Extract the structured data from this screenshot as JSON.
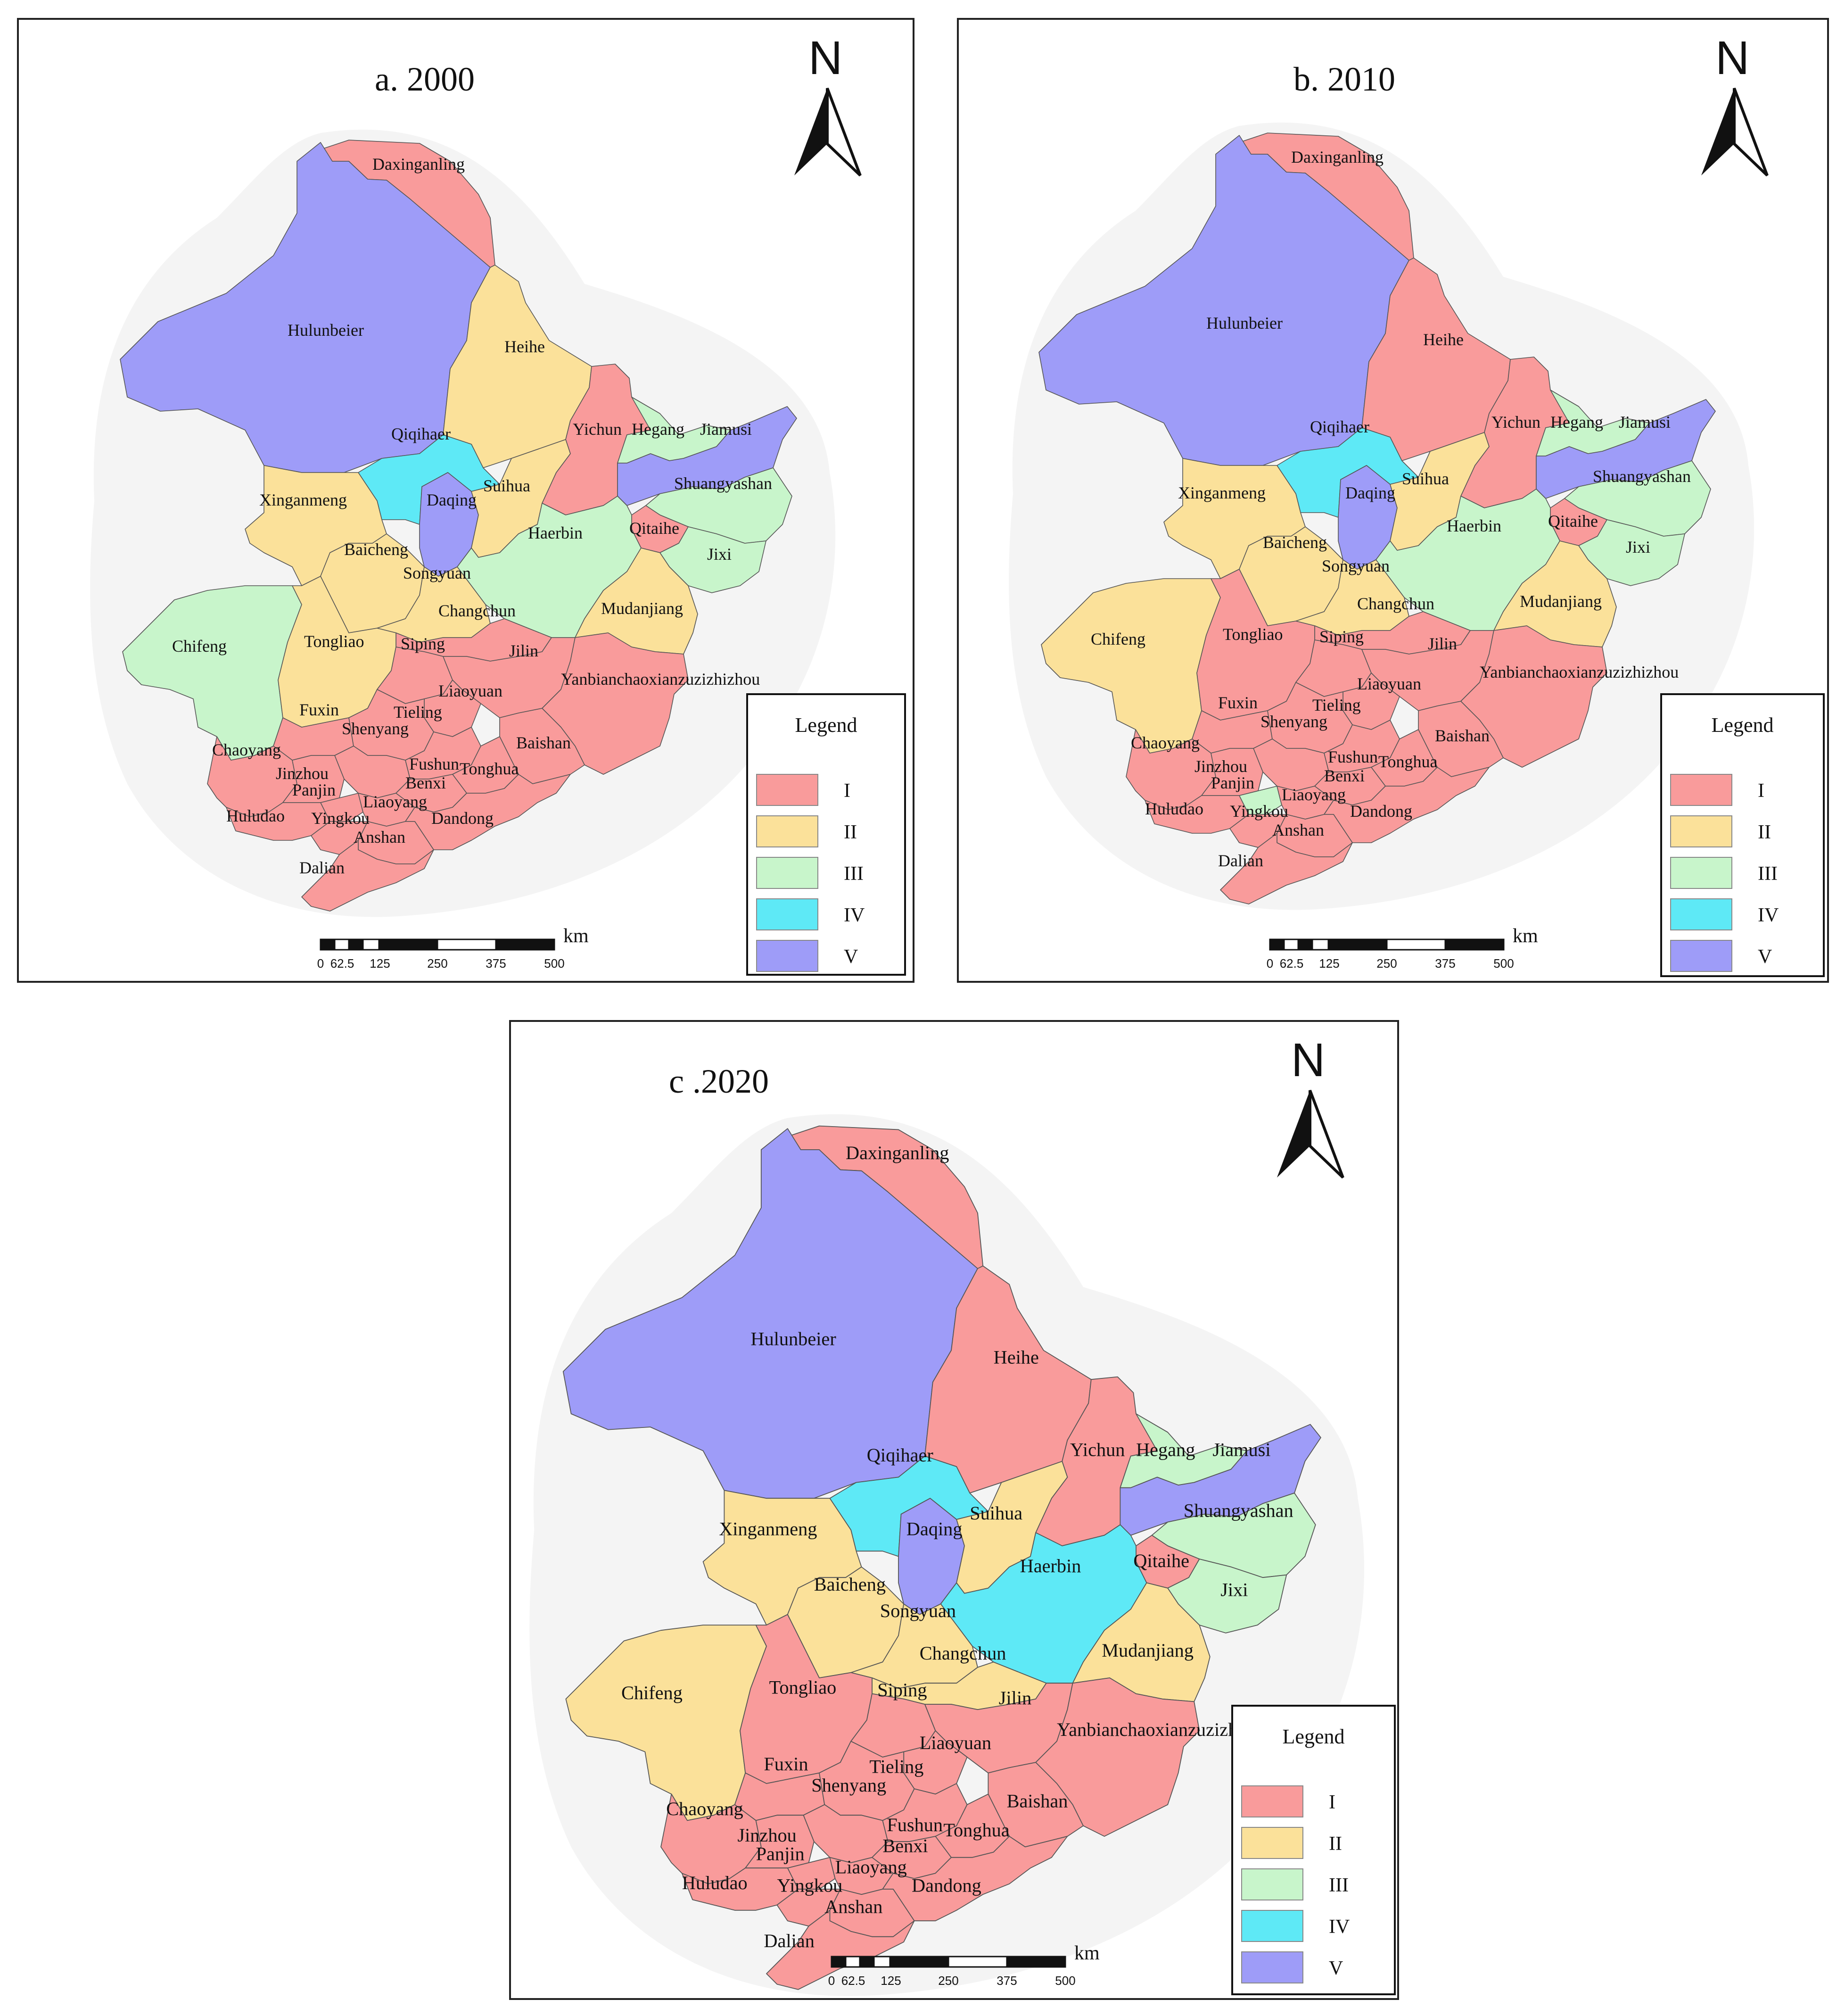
{
  "colors": {
    "I": "#f99b9b",
    "II": "#fbe19a",
    "III": "#c8f5cb",
    "IV": "#5ee9f6",
    "V": "#9e9cf8",
    "halo": "#f4f4f4"
  },
  "legend": {
    "title": "Legend",
    "classes": [
      "I",
      "II",
      "III",
      "IV",
      "V"
    ]
  },
  "north": {
    "letter": "N"
  },
  "scale": {
    "unit": "km",
    "ticks": [
      "0",
      "62.5",
      "125",
      "250",
      "375",
      "500"
    ]
  },
  "panels": [
    {
      "id": "a",
      "title": "a. 2000",
      "classes": {
        "Daxinganling": "I",
        "Hulunbeier": "V",
        "Heihe": "II",
        "Qiqihaer": "IV",
        "Yichun": "I",
        "Hegang": "III",
        "Jiamusi": "V",
        "Shuangyashan": "III",
        "Xinganmeng": "II",
        "Daqing": "V",
        "Suihua": "II",
        "Haerbin": "III",
        "Qitaihe": "I",
        "Jixi": "III",
        "Baicheng": "II",
        "Songyuan": "II",
        "Changchun": "I",
        "Mudanjiang": "II",
        "Chifeng": "III",
        "Tongliao": "II",
        "Siping": "I",
        "Jilin": "I",
        "Yanbianchaoxianzuzizhizhou": "I",
        "Liaoyuan": "I",
        "Fuxin": "I",
        "Tieling": "I",
        "Shenyang": "I",
        "Chaoyang": "I",
        "Baishan": "I",
        "Jinzhou": "I",
        "Fushun": "I",
        "Tonghua": "I",
        "Panjin": "I",
        "Benxi": "I",
        "Liaoyang": "I",
        "Huludao": "I",
        "Yingkou": "I",
        "Dandong": "I",
        "Anshan": "I",
        "Dalian": "I"
      }
    },
    {
      "id": "b",
      "title": "b. 2010",
      "classes": {
        "Daxinganling": "I",
        "Hulunbeier": "V",
        "Heihe": "I",
        "Qiqihaer": "IV",
        "Yichun": "I",
        "Hegang": "III",
        "Jiamusi": "V",
        "Shuangyashan": "III",
        "Xinganmeng": "II",
        "Daqing": "V",
        "Suihua": "II",
        "Haerbin": "III",
        "Qitaihe": "I",
        "Jixi": "III",
        "Baicheng": "II",
        "Songyuan": "II",
        "Changchun": "I",
        "Mudanjiang": "II",
        "Chifeng": "II",
        "Tongliao": "I",
        "Siping": "I",
        "Jilin": "I",
        "Yanbianchaoxianzuzizhizhou": "I",
        "Liaoyuan": "I",
        "Fuxin": "I",
        "Tieling": "I",
        "Shenyang": "I",
        "Chaoyang": "I",
        "Baishan": "I",
        "Jinzhou": "I",
        "Fushun": "I",
        "Tonghua": "I",
        "Panjin": "III",
        "Benxi": "I",
        "Liaoyang": "I",
        "Huludao": "I",
        "Yingkou": "I",
        "Dandong": "I",
        "Anshan": "I",
        "Dalian": "I"
      }
    },
    {
      "id": "c",
      "title": "c .2020",
      "classes": {
        "Daxinganling": "I",
        "Hulunbeier": "V",
        "Heihe": "I",
        "Qiqihaer": "IV",
        "Yichun": "I",
        "Hegang": "III",
        "Jiamusi": "V",
        "Shuangyashan": "III",
        "Xinganmeng": "II",
        "Daqing": "V",
        "Suihua": "II",
        "Haerbin": "IV",
        "Qitaihe": "I",
        "Jixi": "III",
        "Baicheng": "II",
        "Songyuan": "II",
        "Changchun": "II",
        "Mudanjiang": "II",
        "Chifeng": "II",
        "Tongliao": "I",
        "Siping": "I",
        "Jilin": "I",
        "Yanbianchaoxianzuzizhizhou": "I",
        "Liaoyuan": "I",
        "Fuxin": "I",
        "Tieling": "I",
        "Shenyang": "I",
        "Chaoyang": "I",
        "Baishan": "I",
        "Jinzhou": "I",
        "Fushun": "I",
        "Tonghua": "I",
        "Panjin": "I",
        "Benxi": "I",
        "Liaoyang": "I",
        "Huludao": "I",
        "Yingkou": "I",
        "Dandong": "I",
        "Anshan": "I",
        "Dalian": "I"
      }
    }
  ]
}
